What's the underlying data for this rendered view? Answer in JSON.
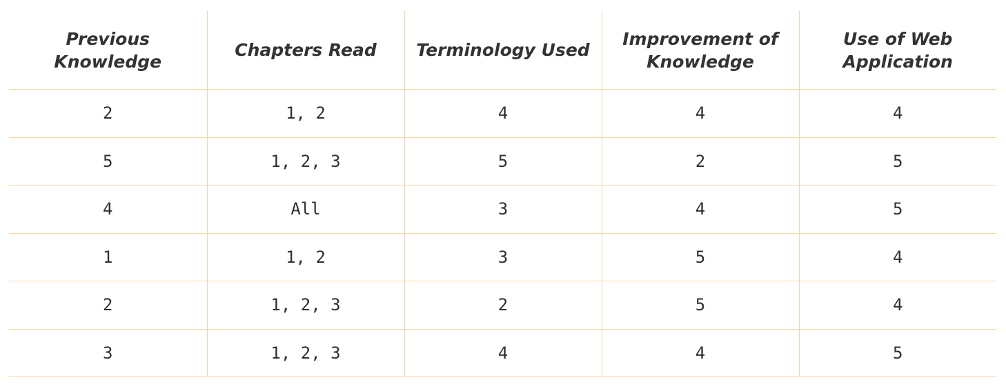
{
  "table": {
    "headers": [
      "Previous Knowledge",
      "Chapters Read",
      "Terminology Used",
      "Improvement of Knowledge",
      "Use of Web Application"
    ],
    "rows": [
      [
        "2",
        "1, 2",
        "4",
        "4",
        "4"
      ],
      [
        "5",
        "1, 2, 3",
        "5",
        "2",
        "5"
      ],
      [
        "4",
        "All",
        "3",
        "4",
        "5"
      ],
      [
        "1",
        "1, 2",
        "3",
        "5",
        "4"
      ],
      [
        "2",
        "1, 2, 3",
        "2",
        "5",
        "4"
      ],
      [
        "3",
        "1, 2, 3",
        "4",
        "4",
        "5"
      ]
    ]
  },
  "colors": {
    "grid_line": "#f7d3a7",
    "text": "#333333",
    "background": "#ffffff"
  }
}
